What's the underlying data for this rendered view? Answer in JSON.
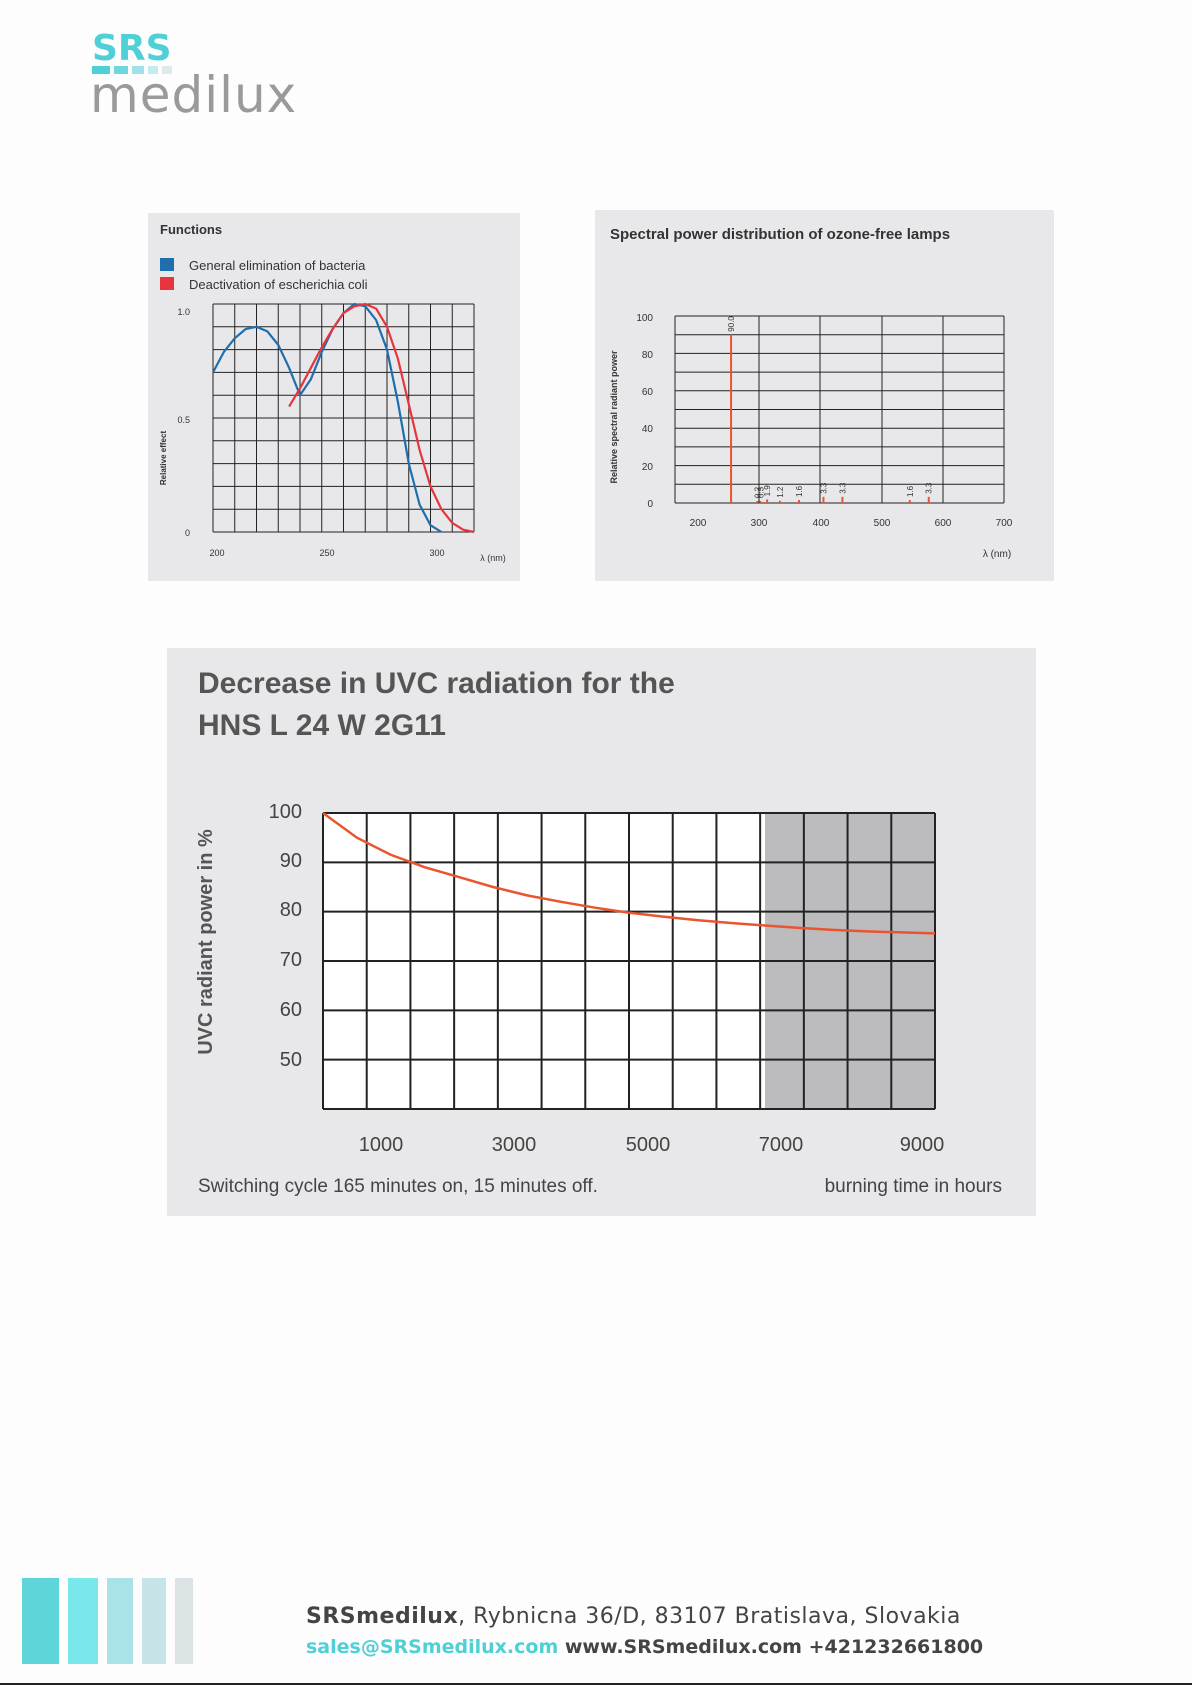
{
  "brand": {
    "logo_top": "SRS",
    "logo_bottom": "medilux",
    "colors": {
      "teal": "#4fcfd6",
      "gray": "#9a9a9a"
    }
  },
  "charts": {
    "functions": {
      "title": "Functions",
      "legend": [
        {
          "label": "General elimination of bacteria",
          "color": "#1f6eae"
        },
        {
          "label": "Deactivation of escherichia coli",
          "color": "#e8343c"
        }
      ],
      "ylabel": "Relative effect",
      "xlabel": "λ (nm)",
      "y_ticks": [
        "1.0",
        "0.5",
        "0"
      ],
      "x_ticks": [
        "200",
        "250",
        "300"
      ]
    },
    "spectral": {
      "title": "Spectral power distribution of ozone-free lamps",
      "ylabel": "Relative spectral radiant power",
      "xlabel": "λ (nm)",
      "y_ticks": [
        "100",
        "80",
        "60",
        "40",
        "20",
        "0"
      ],
      "x_ticks": [
        "200",
        "300",
        "400",
        "500",
        "600",
        "700"
      ]
    },
    "uvc": {
      "title_line1": "Decrease in UVC radiation for the",
      "title_line2": "HNS L 24 W 2G11",
      "ylabel": "UVC radiant power in %",
      "y_ticks": [
        "100",
        "90",
        "80",
        "70",
        "60",
        "50"
      ],
      "x_ticks": [
        "1000",
        "3000",
        "5000",
        "7000",
        "9000"
      ],
      "note": "Switching cycle 165 minutes on, 15 minutes off.",
      "xlabel": "burning time in hours"
    }
  },
  "chart_data": [
    {
      "type": "line",
      "title": "Functions",
      "xlabel": "λ (nm)",
      "ylabel": "Relative effect",
      "xlim": [
        200,
        320
      ],
      "ylim": [
        0,
        1.0
      ],
      "series": [
        {
          "name": "General elimination of bacteria",
          "color": "#1f6eae",
          "x": [
            200,
            205,
            210,
            215,
            220,
            225,
            230,
            235,
            240,
            245,
            250,
            255,
            260,
            265,
            270,
            275,
            280,
            285,
            290,
            295,
            300,
            305
          ],
          "y": [
            0.7,
            0.79,
            0.85,
            0.89,
            0.9,
            0.88,
            0.82,
            0.72,
            0.6,
            0.67,
            0.79,
            0.89,
            0.96,
            1.0,
            0.99,
            0.93,
            0.8,
            0.57,
            0.3,
            0.12,
            0.03,
            0.0
          ]
        },
        {
          "name": "Deactivation of escherichia coli",
          "color": "#e8343c",
          "x": [
            235,
            240,
            245,
            250,
            255,
            260,
            265,
            270,
            275,
            280,
            285,
            290,
            295,
            300,
            305,
            310,
            315,
            320
          ],
          "y": [
            0.55,
            0.63,
            0.72,
            0.81,
            0.89,
            0.96,
            0.99,
            1.0,
            0.98,
            0.9,
            0.76,
            0.56,
            0.36,
            0.2,
            0.1,
            0.04,
            0.01,
            0.0
          ]
        }
      ]
    },
    {
      "type": "bar",
      "title": "Spectral power distribution of ozone-free lamps",
      "xlabel": "λ (nm)",
      "ylabel": "Relative spectral radiant power",
      "xlim": [
        200,
        700
      ],
      "ylim": [
        0,
        100
      ],
      "color": "#e8552e",
      "x": [
        254,
        297,
        302,
        313,
        334,
        365,
        405,
        436,
        546,
        577
      ],
      "values": [
        90.0,
        0.2,
        0.3,
        1.9,
        1.2,
        1.6,
        3.3,
        3.3,
        1.6,
        3.3
      ],
      "labels": [
        "90.0",
        "0.2",
        "0.3",
        "1.9",
        "1.2",
        "1.6",
        "3.3",
        "3.3",
        "1.6",
        "3.3"
      ]
    },
    {
      "type": "line",
      "title": "Decrease in UVC radiation for the HNS L 24 W 2G11",
      "xlabel": "burning time in hours",
      "ylabel": "UVC radiant power in %",
      "xlim": [
        0,
        9000
      ],
      "ylim": [
        40,
        100
      ],
      "shaded_x_range": [
        6500,
        9000
      ],
      "series": [
        {
          "name": "",
          "color": "#e8552e",
          "x": [
            0,
            500,
            1000,
            1500,
            2000,
            2500,
            3000,
            3500,
            4000,
            4500,
            5000,
            5500,
            6000,
            6500,
            7000,
            7500,
            8000,
            8500,
            9000
          ],
          "y": [
            100,
            95.0,
            91.5,
            89.0,
            87.0,
            85.0,
            83.3,
            82.0,
            80.8,
            79.8,
            79.0,
            78.3,
            77.7,
            77.2,
            76.7,
            76.3,
            76.0,
            75.8,
            75.6
          ]
        }
      ]
    }
  ],
  "footer": {
    "company": "SRSmedilux",
    "address": ", Rybnicna 36/D, 83107 Bratislava, Slovakia",
    "email": "sales@SRSmedilux.com",
    "contact": " www.SRSmedilux.com +421232661800"
  }
}
